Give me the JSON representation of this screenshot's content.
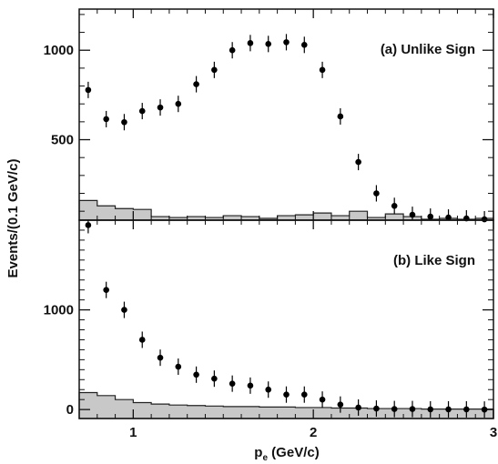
{
  "chart_data": [
    {
      "type": "scatter",
      "panel_label": "(a) Unlike Sign",
      "xlim": [
        0.7,
        3.0
      ],
      "ylim": [
        50,
        1230
      ],
      "yticks_major": [
        500,
        1000
      ],
      "yticks_minor": [
        100,
        200,
        300,
        400,
        600,
        700,
        800,
        900,
        1100,
        1200
      ],
      "points": {
        "x": [
          0.75,
          0.85,
          0.95,
          1.05,
          1.15,
          1.25,
          1.35,
          1.45,
          1.55,
          1.65,
          1.75,
          1.85,
          1.95,
          2.05,
          2.15,
          2.25,
          2.35,
          2.45,
          2.55,
          2.65,
          2.75,
          2.85,
          2.95
        ],
        "y": [
          778,
          615,
          598,
          660,
          680,
          700,
          810,
          890,
          1000,
          1040,
          1035,
          1045,
          1030,
          890,
          630,
          375,
          200,
          130,
          80,
          70,
          65,
          60,
          55
        ]
      },
      "background_histogram": {
        "edges": [
          0.7,
          0.8,
          0.9,
          1.0,
          1.1,
          1.2,
          1.3,
          1.4,
          1.5,
          1.6,
          1.7,
          1.8,
          1.9,
          2.0,
          2.1,
          2.2,
          2.3,
          2.4,
          2.5,
          2.6,
          2.7,
          2.8,
          2.9,
          3.0
        ],
        "values": [
          160,
          130,
          115,
          110,
          70,
          65,
          70,
          65,
          75,
          70,
          60,
          75,
          80,
          90,
          75,
          100,
          65,
          85,
          70,
          55,
          60,
          55,
          60
        ]
      }
    },
    {
      "type": "scatter",
      "panel_label": "(b) Like Sign",
      "xlim": [
        0.7,
        3.0
      ],
      "ylim": [
        -90,
        1900
      ],
      "yticks_major": [
        0,
        1000
      ],
      "yticks_minor": [
        100,
        200,
        300,
        400,
        500,
        600,
        700,
        800,
        900,
        1100,
        1200,
        1300,
        1400,
        1500,
        1600,
        1700,
        1800
      ],
      "points": {
        "x": [
          0.75,
          0.85,
          0.95,
          1.05,
          1.15,
          1.25,
          1.35,
          1.45,
          1.55,
          1.65,
          1.75,
          1.85,
          1.95,
          2.05,
          2.15,
          2.25,
          2.35,
          2.45,
          2.55,
          2.65,
          2.75,
          2.85,
          2.95
        ],
        "y": [
          1850,
          1200,
          1000,
          700,
          520,
          430,
          350,
          310,
          260,
          240,
          200,
          150,
          150,
          100,
          50,
          20,
          10,
          5,
          5,
          2,
          2,
          2,
          0
        ]
      },
      "background_histogram": {
        "edges": [
          0.7,
          0.8,
          0.9,
          1.0,
          1.1,
          1.2,
          1.3,
          1.4,
          1.5,
          1.6,
          1.7,
          1.8,
          1.9,
          2.0,
          2.1,
          2.2,
          2.3,
          2.4,
          2.5,
          2.6,
          2.7,
          2.8,
          2.9,
          3.0
        ],
        "values": [
          170,
          140,
          100,
          70,
          55,
          45,
          40,
          35,
          30,
          30,
          25,
          25,
          20,
          20,
          15,
          15,
          10,
          10,
          10,
          5,
          5,
          5,
          5
        ]
      }
    }
  ],
  "shared_axis": {
    "xticks_major": [
      1,
      2,
      3
    ],
    "xticks_minor": [
      0.8,
      0.9,
      1.1,
      1.2,
      1.3,
      1.4,
      1.5,
      1.6,
      1.7,
      1.8,
      1.9,
      2.1,
      2.2,
      2.3,
      2.4,
      2.5,
      2.6,
      2.7,
      2.8,
      2.9
    ],
    "xlabel_main": "p",
    "xlabel_sub": "e",
    "xlabel_unit": " (GeV/c)",
    "ylabel": "Events/(0.1 GeV/c)"
  },
  "colors": {
    "histogram_fill": "#c8c8c8",
    "axis": "#111111",
    "marker": "#000000"
  }
}
